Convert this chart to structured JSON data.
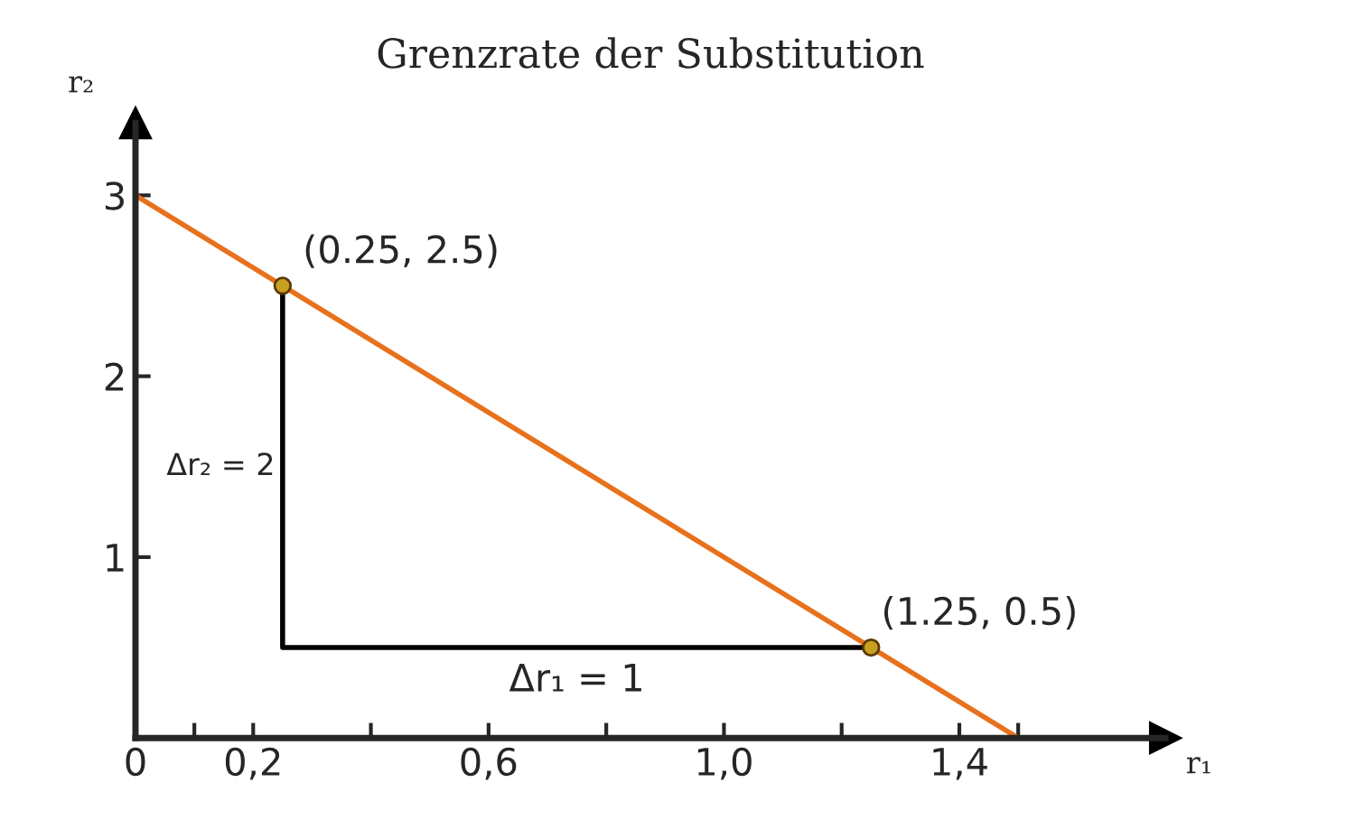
{
  "chart_data": {
    "type": "line",
    "title": "Grenzrate der Substitution",
    "xlabel": "r₁",
    "ylabel": "r₂",
    "xlim": [
      0,
      1.75
    ],
    "ylim": [
      0,
      3.4
    ],
    "xticks": [
      0,
      {
        "value": 0.1,
        "label": null
      },
      {
        "value": 0.2,
        "label": "0,2"
      },
      {
        "value": 0.4,
        "label": null
      },
      {
        "value": 0.6,
        "label": "0,6"
      },
      {
        "value": 0.8,
        "label": null
      },
      {
        "value": 1.0,
        "label": "1,0"
      },
      {
        "value": 1.2,
        "label": null
      },
      {
        "value": 1.4,
        "label": "1,4"
      },
      {
        "value": 1.5,
        "label": null
      }
    ],
    "yticks": [
      1,
      2,
      3
    ],
    "series": [
      {
        "color": "#e8711c",
        "x": [
          0,
          1.5
        ],
        "values": [
          3,
          0
        ]
      },
      {
        "color": "#000000",
        "x": [
          0.25,
          0.25,
          1.25
        ],
        "values": [
          2.5,
          0.5,
          0.5
        ]
      },
      {
        "type": "scatter",
        "color": "#c8a020",
        "x": [
          0.25,
          1.25
        ],
        "values": [
          2.5,
          0.5
        ]
      }
    ],
    "annotations": [
      {
        "text": "(0.25, 2.5)",
        "x": 0.25,
        "y": 2.5
      },
      {
        "text": "(1.25, 0.5)",
        "x": 1.25,
        "y": 0.5
      },
      {
        "text": "Δr₂ = 2",
        "x": 0.25,
        "y": 1.5
      },
      {
        "text": "Δr₁ = 1",
        "x": 0.75,
        "y": 0.5
      }
    ],
    "grid": false
  }
}
